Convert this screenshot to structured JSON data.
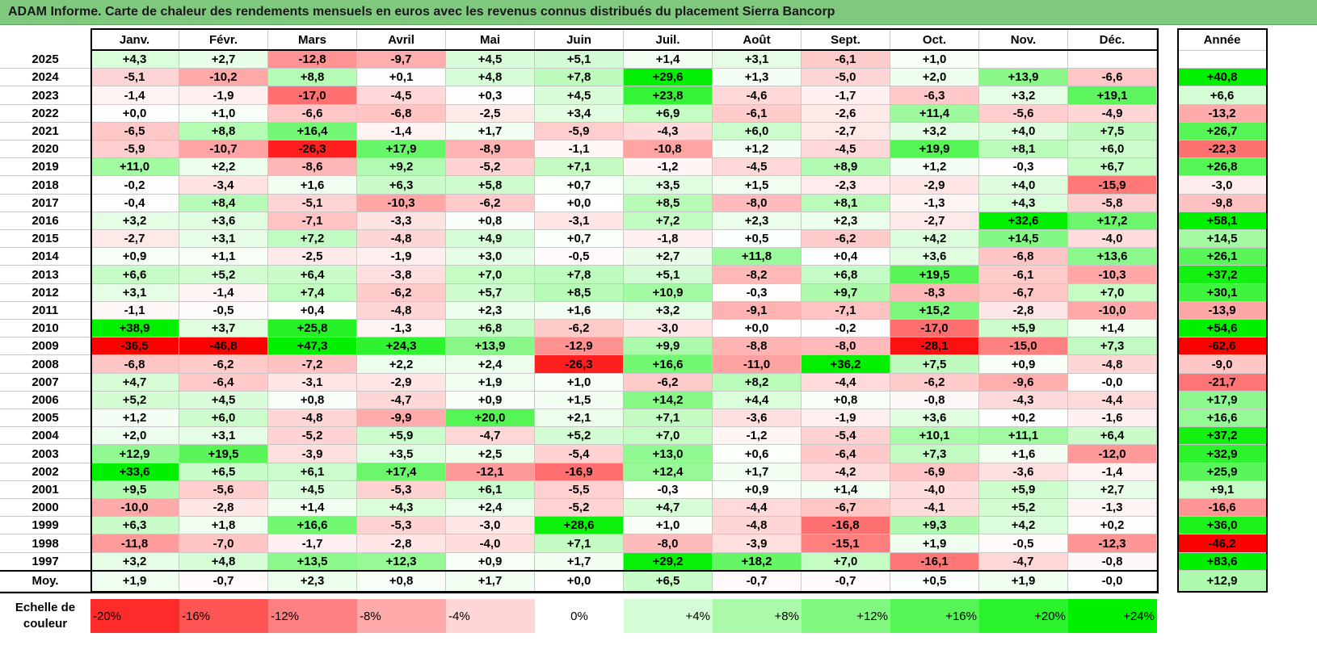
{
  "title": "ADAM Informe. Carte de chaleur des rendements mensuels en euros avec les revenus connus distribués du placement Sierra Bancorp",
  "colors": {
    "title_bar": "#7fc97f",
    "negative_max": "#ff0000",
    "zero": "#ffffff",
    "positive_max": "#00ee00"
  },
  "chart_data": {
    "type": "heatmap",
    "title": "ADAM Informe. Carte de chaleur des rendements mensuels en euros avec les revenus connus distribués du placement Sierra Bancorp",
    "columns": [
      "Janv.",
      "Févr.",
      "Mars",
      "Avril",
      "Mai",
      "Juin",
      "Juil.",
      "Août",
      "Sept.",
      "Oct.",
      "Nov.",
      "Déc."
    ],
    "year_column": "Année",
    "rows": [
      {
        "label": "2025",
        "values": [
          "+4,3",
          "+2,7",
          "-12,8",
          "-9,7",
          "+4,5",
          "+5,1",
          "+1,4",
          "+3,1",
          "-6,1",
          "+1,0",
          "",
          ""
        ],
        "year": ""
      },
      {
        "label": "2024",
        "values": [
          "-5,1",
          "-10,2",
          "+8,8",
          "+0,1",
          "+4,8",
          "+7,8",
          "+29,6",
          "+1,3",
          "-5,0",
          "+2,0",
          "+13,9",
          "-6,6"
        ],
        "year": "+40,8"
      },
      {
        "label": "2023",
        "values": [
          "-1,4",
          "-1,9",
          "-17,0",
          "-4,5",
          "+0,3",
          "+4,5",
          "+23,8",
          "-4,6",
          "-1,7",
          "-6,3",
          "+3,2",
          "+19,1"
        ],
        "year": "+6,6"
      },
      {
        "label": "2022",
        "values": [
          "+0,0",
          "+1,0",
          "-6,6",
          "-6,8",
          "-2,5",
          "+3,4",
          "+6,9",
          "-6,1",
          "-2,6",
          "+11,4",
          "-5,6",
          "-4,9"
        ],
        "year": "-13,2"
      },
      {
        "label": "2021",
        "values": [
          "-6,5",
          "+8,8",
          "+16,4",
          "-1,4",
          "+1,7",
          "-5,9",
          "-4,3",
          "+6,0",
          "-2,7",
          "+3,2",
          "+4,0",
          "+7,5"
        ],
        "year": "+26,7"
      },
      {
        "label": "2020",
        "values": [
          "-5,9",
          "-10,7",
          "-26,3",
          "+17,9",
          "-8,9",
          "-1,1",
          "-10,8",
          "+1,2",
          "-4,5",
          "+19,9",
          "+8,1",
          "+6,0"
        ],
        "year": "-22,3"
      },
      {
        "label": "2019",
        "values": [
          "+11,0",
          "+2,2",
          "-8,6",
          "+9,2",
          "-5,2",
          "+7,1",
          "-1,2",
          "-4,5",
          "+8,9",
          "+1,2",
          "-0,3",
          "+6,7"
        ],
        "year": "+26,8"
      },
      {
        "label": "2018",
        "values": [
          "-0,2",
          "-3,4",
          "+1,6",
          "+6,3",
          "+5,8",
          "+0,7",
          "+3,5",
          "+1,5",
          "-2,3",
          "-2,9",
          "+4,0",
          "-15,9"
        ],
        "year": "-3,0"
      },
      {
        "label": "2017",
        "values": [
          "-0,4",
          "+8,4",
          "-5,1",
          "-10,3",
          "-6,2",
          "+0,0",
          "+8,5",
          "-8,0",
          "+8,1",
          "-1,3",
          "+4,3",
          "-5,8"
        ],
        "year": "-9,8"
      },
      {
        "label": "2016",
        "values": [
          "+3,2",
          "+3,6",
          "-7,1",
          "-3,3",
          "+0,8",
          "-3,1",
          "+7,2",
          "+2,3",
          "+2,3",
          "-2,7",
          "+32,6",
          "+17,2"
        ],
        "year": "+58,1"
      },
      {
        "label": "2015",
        "values": [
          "-2,7",
          "+3,1",
          "+7,2",
          "-4,8",
          "+4,9",
          "+0,7",
          "-1,8",
          "+0,5",
          "-6,2",
          "+4,2",
          "+14,5",
          "-4,0"
        ],
        "year": "+14,5"
      },
      {
        "label": "2014",
        "values": [
          "+0,9",
          "+1,1",
          "-2,5",
          "-1,9",
          "+3,0",
          "-0,5",
          "+2,7",
          "+11,8",
          "+0,4",
          "+3,6",
          "-6,8",
          "+13,6"
        ],
        "year": "+26,1"
      },
      {
        "label": "2013",
        "values": [
          "+6,6",
          "+5,2",
          "+6,4",
          "-3,8",
          "+7,0",
          "+7,8",
          "+5,1",
          "-8,2",
          "+6,8",
          "+19,5",
          "-6,1",
          "-10,3"
        ],
        "year": "+37,2"
      },
      {
        "label": "2012",
        "values": [
          "+3,1",
          "-1,4",
          "+7,4",
          "-6,2",
          "+5,7",
          "+8,5",
          "+10,9",
          "-0,3",
          "+9,7",
          "-8,3",
          "-6,7",
          "+7,0"
        ],
        "year": "+30,1"
      },
      {
        "label": "2011",
        "values": [
          "-1,1",
          "-0,5",
          "+0,4",
          "-4,8",
          "+2,3",
          "+1,6",
          "+3,2",
          "-9,1",
          "-7,1",
          "+15,2",
          "-2,8",
          "-10,0"
        ],
        "year": "-13,9"
      },
      {
        "label": "2010",
        "values": [
          "+38,9",
          "+3,7",
          "+25,8",
          "-1,3",
          "+6,8",
          "-6,2",
          "-3,0",
          "+0,0",
          "-0,2",
          "-17,0",
          "+5,9",
          "+1,4"
        ],
        "year": "+54,6"
      },
      {
        "label": "2009",
        "values": [
          "-36,5",
          "-46,8",
          "+47,3",
          "+24,3",
          "+13,9",
          "-12,9",
          "+9,9",
          "-8,8",
          "-8,0",
          "-28,1",
          "-15,0",
          "+7,3"
        ],
        "year": "-62,6"
      },
      {
        "label": "2008",
        "values": [
          "-6,8",
          "-6,2",
          "-7,2",
          "+2,2",
          "+2,4",
          "-26,3",
          "+16,6",
          "-11,0",
          "+36,2",
          "+7,5",
          "+0,9",
          "-4,8"
        ],
        "year": "-9,0"
      },
      {
        "label": "2007",
        "values": [
          "+4,7",
          "-6,4",
          "-3,1",
          "-2,9",
          "+1,9",
          "+1,0",
          "-6,2",
          "+8,2",
          "-4,4",
          "-6,2",
          "-9,6",
          "-0,0"
        ],
        "year": "-21,7"
      },
      {
        "label": "2006",
        "values": [
          "+5,2",
          "+4,5",
          "+0,8",
          "-4,7",
          "+0,9",
          "+1,5",
          "+14,2",
          "+4,4",
          "+0,8",
          "-0,8",
          "-4,3",
          "-4,4"
        ],
        "year": "+17,9"
      },
      {
        "label": "2005",
        "values": [
          "+1,2",
          "+6,0",
          "-4,8",
          "-9,9",
          "+20,0",
          "+2,1",
          "+7,1",
          "-3,6",
          "-1,9",
          "+3,6",
          "+0,2",
          "-1,6"
        ],
        "year": "+16,6"
      },
      {
        "label": "2004",
        "values": [
          "+2,0",
          "+3,1",
          "-5,2",
          "+5,9",
          "-4,7",
          "+5,2",
          "+7,0",
          "-1,2",
          "-5,4",
          "+10,1",
          "+11,1",
          "+6,4"
        ],
        "year": "+37,2"
      },
      {
        "label": "2003",
        "values": [
          "+12,9",
          "+19,5",
          "-3,9",
          "+3,5",
          "+2,5",
          "-5,4",
          "+13,0",
          "+0,6",
          "-6,4",
          "+7,3",
          "+1,6",
          "-12,0"
        ],
        "year": "+32,9"
      },
      {
        "label": "2002",
        "values": [
          "+33,6",
          "+6,5",
          "+6,1",
          "+17,4",
          "-12,1",
          "-16,9",
          "+12,4",
          "+1,7",
          "-4,2",
          "-6,9",
          "-3,6",
          "-1,4"
        ],
        "year": "+25,9"
      },
      {
        "label": "2001",
        "values": [
          "+9,5",
          "-5,6",
          "+4,5",
          "-5,3",
          "+6,1",
          "-5,5",
          "-0,3",
          "+0,9",
          "+1,4",
          "-4,0",
          "+5,9",
          "+2,7"
        ],
        "year": "+9,1"
      },
      {
        "label": "2000",
        "values": [
          "-10,0",
          "-2,8",
          "+1,4",
          "+4,3",
          "+2,4",
          "-5,2",
          "+4,7",
          "-4,4",
          "-6,7",
          "-4,1",
          "+5,2",
          "-1,3"
        ],
        "year": "-16,6"
      },
      {
        "label": "1999",
        "values": [
          "+6,3",
          "+1,8",
          "+16,6",
          "-5,3",
          "-3,0",
          "+28,6",
          "+1,0",
          "-4,8",
          "-16,8",
          "+9,3",
          "+4,2",
          "+0,2"
        ],
        "year": "+36,0"
      },
      {
        "label": "1998",
        "values": [
          "-11,8",
          "-7,0",
          "-1,7",
          "-2,8",
          "-4,0",
          "+7,1",
          "-8,0",
          "-3,9",
          "-15,1",
          "+1,9",
          "-0,5",
          "-12,3"
        ],
        "year": "-46,2"
      },
      {
        "label": "1997",
        "values": [
          "+3,2",
          "+4,8",
          "+13,5",
          "+12,3",
          "+0,9",
          "+1,7",
          "+29,2",
          "+18,2",
          "+7,0",
          "-16,1",
          "-4,7",
          "-0,8"
        ],
        "year": "+83,6"
      }
    ],
    "average_row": {
      "label": "Moy.",
      "values": [
        "+1,9",
        "-0,7",
        "+2,3",
        "+0,8",
        "+1,7",
        "+0,0",
        "+6,5",
        "-0,7",
        "-0,7",
        "+0,5",
        "+1,9",
        "-0,0"
      ],
      "year": "+12,9"
    },
    "color_scale": {
      "label": "Echelle de couleur",
      "steps": [
        "-20%",
        "-16%",
        "-12%",
        "-8%",
        "-4%",
        "0%",
        "+4%",
        "+8%",
        "+12%",
        "+16%",
        "+20%",
        "+24%"
      ]
    }
  }
}
